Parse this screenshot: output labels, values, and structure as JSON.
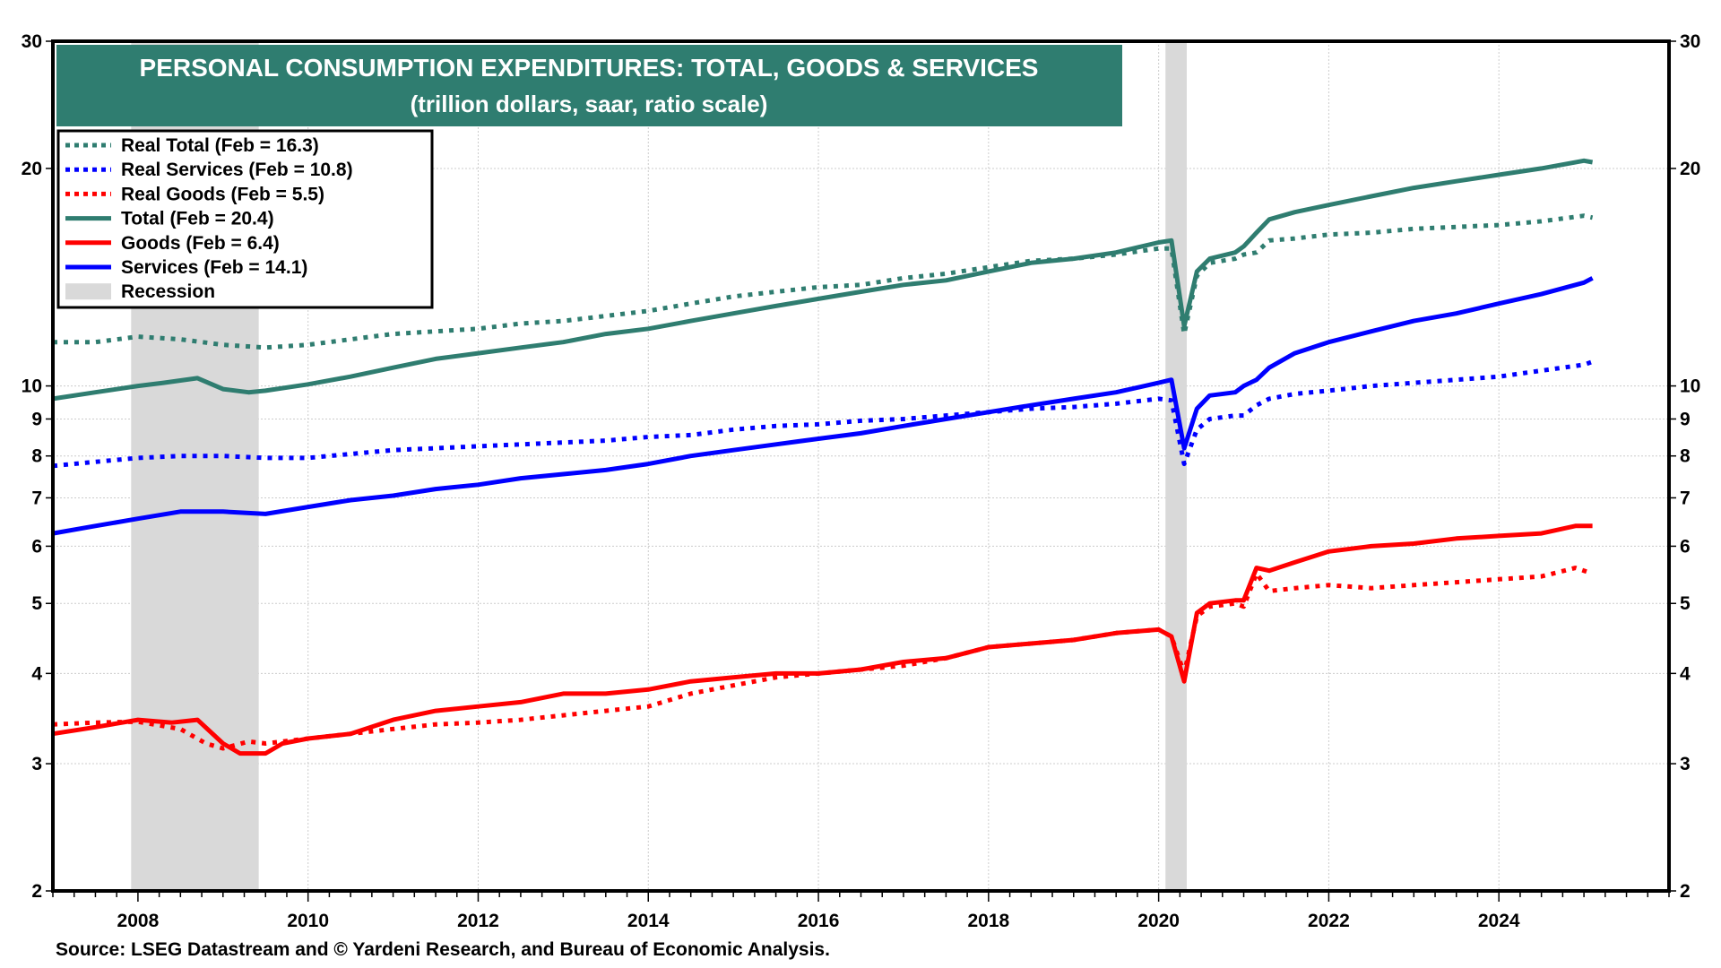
{
  "chart_data": {
    "type": "line",
    "title": "PERSONAL CONSUMPTION EXPENDITURES: TOTAL, GOODS & SERVICES",
    "subtitle": "(trillion dollars, saar, ratio scale)",
    "xlabel": "",
    "ylabel": "",
    "yscale": "log",
    "ylim": [
      2,
      30
    ],
    "xlim": [
      2007.0,
      2026.0
    ],
    "y_ticks": [
      2,
      3,
      4,
      5,
      6,
      7,
      8,
      9,
      10,
      20,
      30
    ],
    "x_ticks": [
      2008,
      2010,
      2012,
      2014,
      2016,
      2018,
      2020,
      2022,
      2024
    ],
    "grid": true,
    "legend_position": "top-left",
    "source": "Source: LSEG Datastream and © Yardeni Research, and Bureau of Economic Analysis.",
    "recessions": [
      [
        2007.92,
        2009.42
      ],
      [
        2020.08,
        2020.33
      ]
    ],
    "recession_label": "Recession",
    "colors": {
      "total": "#2F7D70",
      "services": "#0000FF",
      "goods": "#FF0000",
      "recession": "#D9D9D9",
      "title_bg": "#2F7D70"
    },
    "series": [
      {
        "key": "real_total",
        "name": "Real Total  (Feb = 16.3)",
        "color": "#2F7D70",
        "dashed": true,
        "x": [
          2007.0,
          2007.5,
          2008.0,
          2008.5,
          2009.0,
          2009.5,
          2010.0,
          2010.5,
          2011.0,
          2011.5,
          2012.0,
          2012.5,
          2013.0,
          2013.5,
          2014.0,
          2014.5,
          2015.0,
          2015.5,
          2016.0,
          2016.5,
          2017.0,
          2017.5,
          2018.0,
          2018.5,
          2019.0,
          2019.5,
          2020.0,
          2020.15,
          2020.3,
          2020.45,
          2020.6,
          2020.9,
          2021.0,
          2021.15,
          2021.3,
          2021.6,
          2022.0,
          2022.5,
          2023.0,
          2023.5,
          2024.0,
          2024.5,
          2025.0,
          2025.1
        ],
        "values": [
          11.5,
          11.5,
          11.7,
          11.6,
          11.4,
          11.3,
          11.4,
          11.6,
          11.8,
          11.9,
          12.0,
          12.2,
          12.3,
          12.5,
          12.7,
          13.0,
          13.3,
          13.5,
          13.7,
          13.8,
          14.1,
          14.3,
          14.6,
          14.9,
          15.0,
          15.2,
          15.5,
          15.5,
          11.8,
          14.2,
          14.8,
          15.0,
          15.2,
          15.3,
          15.9,
          16.0,
          16.2,
          16.3,
          16.5,
          16.6,
          16.7,
          16.9,
          17.2,
          17.1
        ]
      },
      {
        "key": "real_services",
        "name": "Real Services  (Feb = 10.8)",
        "color": "#0000FF",
        "dashed": true,
        "x": [
          2007.0,
          2007.5,
          2008.0,
          2008.5,
          2009.0,
          2009.5,
          2010.0,
          2010.5,
          2011.0,
          2011.5,
          2012.0,
          2012.5,
          2013.0,
          2013.5,
          2014.0,
          2014.5,
          2015.0,
          2015.5,
          2016.0,
          2016.5,
          2017.0,
          2017.5,
          2018.0,
          2018.5,
          2019.0,
          2019.5,
          2020.0,
          2020.15,
          2020.3,
          2020.45,
          2020.6,
          2020.9,
          2021.0,
          2021.15,
          2021.3,
          2021.6,
          2022.0,
          2022.5,
          2023.0,
          2023.5,
          2024.0,
          2024.5,
          2025.0,
          2025.1
        ],
        "values": [
          7.75,
          7.85,
          7.95,
          8.0,
          8.0,
          7.95,
          7.95,
          8.05,
          8.15,
          8.2,
          8.25,
          8.3,
          8.35,
          8.4,
          8.5,
          8.55,
          8.7,
          8.8,
          8.85,
          8.95,
          9.0,
          9.1,
          9.2,
          9.3,
          9.35,
          9.45,
          9.6,
          9.55,
          7.8,
          8.7,
          9.0,
          9.1,
          9.1,
          9.4,
          9.6,
          9.75,
          9.85,
          10.0,
          10.1,
          10.2,
          10.3,
          10.5,
          10.7,
          10.8
        ]
      },
      {
        "key": "real_goods",
        "name": "Real Goods  (Feb = 5.5)",
        "color": "#FF0000",
        "dashed": true,
        "x": [
          2007.0,
          2007.5,
          2008.0,
          2008.5,
          2008.8,
          2009.0,
          2009.3,
          2009.5,
          2010.0,
          2010.5,
          2011.0,
          2011.5,
          2012.0,
          2012.5,
          2013.0,
          2013.5,
          2014.0,
          2014.5,
          2015.0,
          2015.5,
          2016.0,
          2016.5,
          2017.0,
          2017.5,
          2018.0,
          2018.5,
          2019.0,
          2019.5,
          2020.0,
          2020.15,
          2020.3,
          2020.45,
          2020.6,
          2020.9,
          2021.0,
          2021.15,
          2021.3,
          2021.6,
          2022.0,
          2022.5,
          2023.0,
          2023.5,
          2024.0,
          2024.5,
          2024.9,
          2025.1
        ],
        "values": [
          3.4,
          3.42,
          3.43,
          3.35,
          3.2,
          3.15,
          3.22,
          3.2,
          3.25,
          3.3,
          3.35,
          3.4,
          3.42,
          3.45,
          3.5,
          3.55,
          3.6,
          3.75,
          3.85,
          3.95,
          4.0,
          4.05,
          4.1,
          4.2,
          4.35,
          4.4,
          4.45,
          4.55,
          4.6,
          4.5,
          4.0,
          4.8,
          4.95,
          5.0,
          4.95,
          5.5,
          5.2,
          5.25,
          5.3,
          5.25,
          5.3,
          5.35,
          5.4,
          5.45,
          5.6,
          5.5
        ]
      },
      {
        "key": "total",
        "name": "Total  (Feb = 20.4)",
        "color": "#2F7D70",
        "dashed": false,
        "x": [
          2007.0,
          2007.5,
          2008.0,
          2008.3,
          2008.7,
          2009.0,
          2009.3,
          2009.5,
          2010.0,
          2010.5,
          2011.0,
          2011.5,
          2012.0,
          2012.5,
          2013.0,
          2013.5,
          2014.0,
          2014.5,
          2015.0,
          2015.5,
          2016.0,
          2016.5,
          2017.0,
          2017.5,
          2018.0,
          2018.5,
          2019.0,
          2019.5,
          2020.0,
          2020.15,
          2020.3,
          2020.45,
          2020.6,
          2020.9,
          2021.0,
          2021.15,
          2021.3,
          2021.6,
          2022.0,
          2022.5,
          2023.0,
          2023.5,
          2024.0,
          2024.5,
          2025.0,
          2025.1
        ],
        "values": [
          9.6,
          9.8,
          10.0,
          10.1,
          10.25,
          9.9,
          9.8,
          9.85,
          10.05,
          10.3,
          10.6,
          10.9,
          11.1,
          11.3,
          11.5,
          11.8,
          12.0,
          12.3,
          12.6,
          12.9,
          13.2,
          13.5,
          13.8,
          14.0,
          14.4,
          14.8,
          15.0,
          15.3,
          15.8,
          15.9,
          12.1,
          14.4,
          15.0,
          15.3,
          15.6,
          16.3,
          17.0,
          17.4,
          17.8,
          18.3,
          18.8,
          19.2,
          19.6,
          20.0,
          20.5,
          20.4
        ]
      },
      {
        "key": "goods",
        "name": "Goods (Feb = 6.4)",
        "color": "#FF0000",
        "dashed": false,
        "x": [
          2007.0,
          2007.5,
          2008.0,
          2008.4,
          2008.7,
          2009.0,
          2009.2,
          2009.5,
          2009.7,
          2010.0,
          2010.5,
          2011.0,
          2011.5,
          2012.0,
          2012.5,
          2013.0,
          2013.5,
          2014.0,
          2014.5,
          2015.0,
          2015.5,
          2016.0,
          2016.5,
          2017.0,
          2017.5,
          2018.0,
          2018.5,
          2019.0,
          2019.5,
          2020.0,
          2020.15,
          2020.3,
          2020.45,
          2020.6,
          2020.9,
          2021.0,
          2021.15,
          2021.3,
          2021.6,
          2022.0,
          2022.5,
          2023.0,
          2023.5,
          2024.0,
          2024.5,
          2024.9,
          2025.1
        ],
        "values": [
          3.3,
          3.37,
          3.45,
          3.42,
          3.45,
          3.2,
          3.1,
          3.1,
          3.2,
          3.25,
          3.3,
          3.45,
          3.55,
          3.6,
          3.65,
          3.75,
          3.75,
          3.8,
          3.9,
          3.95,
          4.0,
          4.0,
          4.05,
          4.15,
          4.2,
          4.35,
          4.4,
          4.45,
          4.55,
          4.6,
          4.5,
          3.9,
          4.85,
          5.0,
          5.05,
          5.05,
          5.6,
          5.55,
          5.7,
          5.9,
          6.0,
          6.05,
          6.15,
          6.2,
          6.25,
          6.4,
          6.4
        ]
      },
      {
        "key": "services",
        "name": "Services (Feb = 14.1)",
        "color": "#0000FF",
        "dashed": false,
        "x": [
          2007.0,
          2007.5,
          2008.0,
          2008.5,
          2009.0,
          2009.5,
          2010.0,
          2010.5,
          2011.0,
          2011.5,
          2012.0,
          2012.5,
          2013.0,
          2013.5,
          2014.0,
          2014.5,
          2015.0,
          2015.5,
          2016.0,
          2016.5,
          2017.0,
          2017.5,
          2018.0,
          2018.5,
          2019.0,
          2019.5,
          2020.0,
          2020.15,
          2020.3,
          2020.45,
          2020.6,
          2020.9,
          2021.0,
          2021.15,
          2021.3,
          2021.6,
          2022.0,
          2022.5,
          2023.0,
          2023.5,
          2024.0,
          2024.5,
          2025.0,
          2025.1
        ],
        "values": [
          6.25,
          6.4,
          6.55,
          6.7,
          6.7,
          6.65,
          6.8,
          6.95,
          7.05,
          7.2,
          7.3,
          7.45,
          7.55,
          7.65,
          7.8,
          8.0,
          8.15,
          8.3,
          8.45,
          8.6,
          8.8,
          9.0,
          9.2,
          9.4,
          9.6,
          9.8,
          10.1,
          10.2,
          8.2,
          9.3,
          9.7,
          9.8,
          10.0,
          10.2,
          10.6,
          11.1,
          11.5,
          11.9,
          12.3,
          12.6,
          13.0,
          13.4,
          13.9,
          14.1
        ]
      }
    ]
  }
}
